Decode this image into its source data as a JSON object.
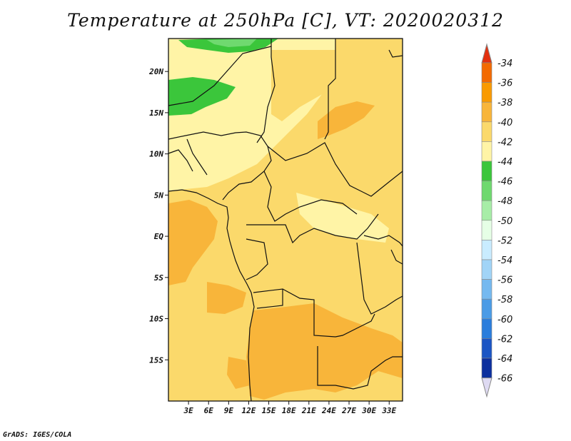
{
  "title": "Temperature at 250hPa [C], VT: 2020020312",
  "credit": "GrADS: IGES/COLA",
  "map": {
    "lon_range": [
      0,
      35
    ],
    "lat_range": [
      -20,
      24
    ],
    "lon_ticks": [
      "3E",
      "6E",
      "9E",
      "12E",
      "15E",
      "18E",
      "21E",
      "24E",
      "27E",
      "30E",
      "33E"
    ],
    "lat_ticks": [
      "20N",
      "15N",
      "10N",
      "5N",
      "EQ",
      "5S",
      "10S",
      "15S"
    ],
    "lon_tick_values": [
      3,
      6,
      9,
      12,
      15,
      18,
      21,
      24,
      27,
      30,
      33
    ],
    "lat_tick_values": [
      20,
      15,
      10,
      5,
      0,
      -5,
      -10,
      -15
    ]
  },
  "colorbar": {
    "labels": [
      "-34",
      "-36",
      "-38",
      "-40",
      "-42",
      "-44",
      "-46",
      "-48",
      "-50",
      "-52",
      "-54",
      "-56",
      "-58",
      "-60",
      "-62",
      "-64",
      "-66"
    ],
    "colors": [
      "#e3300f",
      "#f36a00",
      "#f99a00",
      "#f8b53a",
      "#fbd96b",
      "#fff4a6",
      "#3bc63b",
      "#6fd96f",
      "#a7eda7",
      "#e6ffe6",
      "#c9ecff",
      "#a1d4f7",
      "#75b9f0",
      "#4a9be6",
      "#2a7ddc",
      "#1b55c4",
      "#0c2f9e",
      "#0a1270",
      "#dedaf2"
    ],
    "top_color": "#e3300f",
    "bottom_color": "#dedaf2"
  }
}
